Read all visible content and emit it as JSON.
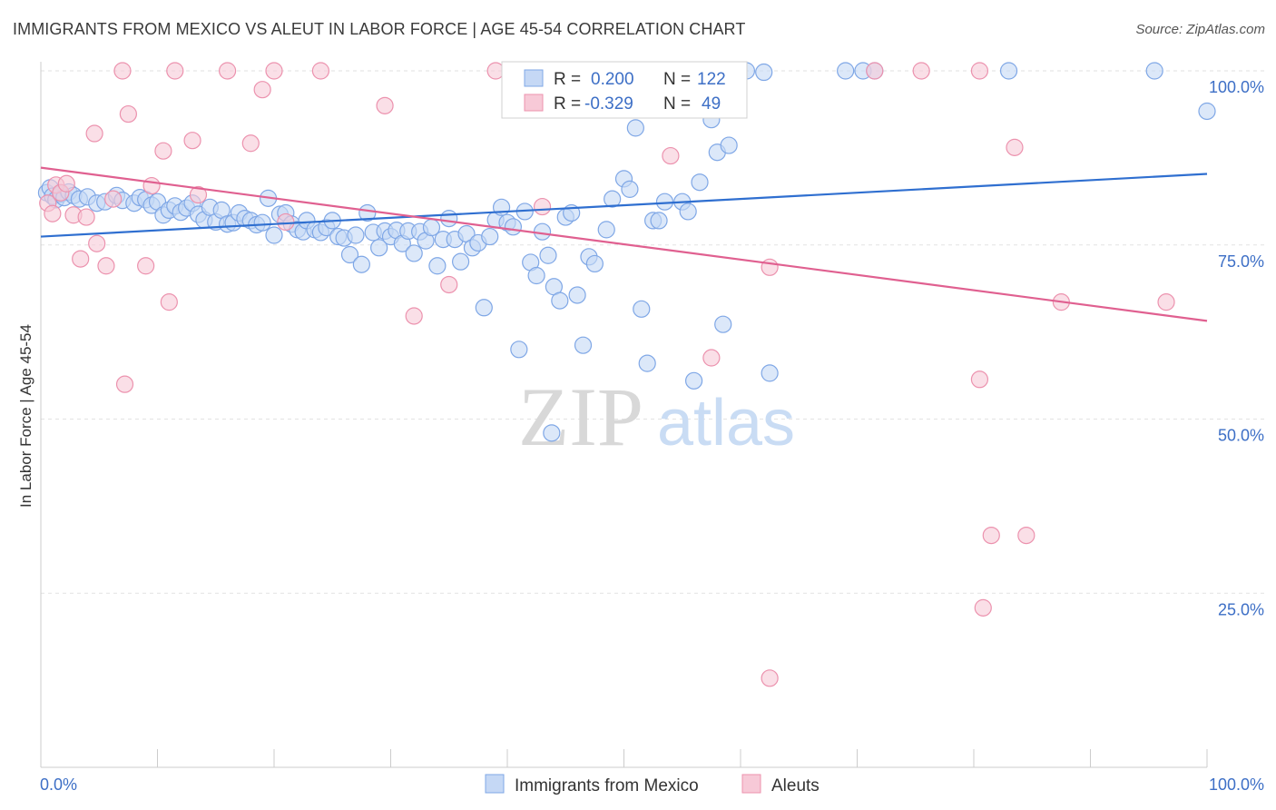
{
  "title": "IMMIGRANTS FROM MEXICO VS ALEUT IN LABOR FORCE | AGE 45-54 CORRELATION CHART",
  "source": "Source: ZipAtlas.com",
  "watermark": {
    "zip": "ZIP",
    "atlas": "atlas"
  },
  "legend": {
    "r_label": "R =",
    "n_label": "N =",
    "rows": [
      {
        "r": "0.200",
        "n": "122"
      },
      {
        "r": "-0.329",
        "n": "49"
      }
    ]
  },
  "chart_data": {
    "type": "scatter",
    "ylabel": "In Labor Force | Age 45-54",
    "xlim": [
      0,
      100
    ],
    "ylim": [
      0,
      100
    ],
    "x_tick_labels": {
      "left": "0.0%",
      "right": "100.0%"
    },
    "y_ticks": [
      {
        "value": 100,
        "label": "100.0%"
      },
      {
        "value": 75,
        "label": "75.0%"
      },
      {
        "value": 50,
        "label": "50.0%"
      },
      {
        "value": 25,
        "label": "25.0%"
      }
    ],
    "grid": "horizontal dashed",
    "legend_position": "top-center",
    "series": [
      {
        "name": "Immigrants from Mexico",
        "color": "#7fa7e6",
        "fill": "#c5d8f5",
        "trend": {
          "x0": 0,
          "y0": 76.2,
          "x1": 100,
          "y1": 85.2,
          "color": "#2f6fd0"
        },
        "points": [
          [
            0.5,
            82.5
          ],
          [
            0.8,
            83.2
          ],
          [
            1.0,
            82.0
          ],
          [
            1.3,
            81.5
          ],
          [
            1.7,
            82.3
          ],
          [
            2.0,
            81.8
          ],
          [
            2.4,
            82.6
          ],
          [
            2.8,
            82.1
          ],
          [
            3.3,
            81.6
          ],
          [
            4.0,
            81.9
          ],
          [
            4.8,
            81.0
          ],
          [
            5.5,
            81.2
          ],
          [
            6.5,
            82.1
          ],
          [
            7.0,
            81.4
          ],
          [
            8.0,
            81.0
          ],
          [
            8.5,
            81.8
          ],
          [
            9.0,
            81.5
          ],
          [
            9.5,
            80.7
          ],
          [
            10.0,
            81.2
          ],
          [
            10.5,
            79.3
          ],
          [
            11.0,
            80.0
          ],
          [
            11.5,
            80.6
          ],
          [
            12.0,
            79.7
          ],
          [
            12.5,
            80.3
          ],
          [
            13.0,
            81.0
          ],
          [
            13.5,
            79.4
          ],
          [
            14.0,
            78.6
          ],
          [
            14.5,
            80.4
          ],
          [
            15.0,
            78.3
          ],
          [
            15.5,
            80.0
          ],
          [
            16.0,
            78.0
          ],
          [
            16.5,
            78.2
          ],
          [
            17.0,
            79.6
          ],
          [
            17.5,
            78.8
          ],
          [
            18.0,
            78.5
          ],
          [
            18.5,
            77.9
          ],
          [
            19.0,
            78.2
          ],
          [
            19.5,
            81.7
          ],
          [
            20.0,
            76.4
          ],
          [
            20.5,
            79.4
          ],
          [
            21.0,
            79.6
          ],
          [
            21.5,
            78.0
          ],
          [
            22.0,
            77.2
          ],
          [
            22.5,
            76.9
          ],
          [
            22.8,
            78.5
          ],
          [
            23.5,
            77.2
          ],
          [
            24.0,
            76.8
          ],
          [
            24.5,
            77.5
          ],
          [
            25.0,
            78.5
          ],
          [
            25.5,
            76.2
          ],
          [
            26.0,
            76.0
          ],
          [
            26.5,
            73.6
          ],
          [
            27.0,
            76.4
          ],
          [
            27.5,
            72.2
          ],
          [
            28.0,
            79.6
          ],
          [
            28.5,
            76.8
          ],
          [
            29.0,
            74.6
          ],
          [
            29.5,
            77.0
          ],
          [
            30.0,
            76.2
          ],
          [
            30.5,
            77.1
          ],
          [
            31.0,
            75.2
          ],
          [
            31.5,
            77.0
          ],
          [
            32.0,
            73.8
          ],
          [
            32.5,
            76.9
          ],
          [
            33.0,
            75.6
          ],
          [
            33.5,
            77.5
          ],
          [
            34.0,
            72.0
          ],
          [
            34.5,
            75.8
          ],
          [
            35.0,
            78.8
          ],
          [
            35.5,
            75.8
          ],
          [
            36.0,
            72.6
          ],
          [
            36.5,
            76.6
          ],
          [
            37.0,
            74.6
          ],
          [
            37.5,
            75.3
          ],
          [
            38.0,
            66.0
          ],
          [
            38.5,
            76.2
          ],
          [
            39.0,
            78.6
          ],
          [
            39.5,
            80.4
          ],
          [
            40.0,
            78.2
          ],
          [
            40.5,
            77.6
          ],
          [
            41.0,
            60.0
          ],
          [
            41.5,
            79.8
          ],
          [
            42.0,
            72.5
          ],
          [
            42.5,
            70.6
          ],
          [
            43.0,
            76.9
          ],
          [
            43.5,
            73.5
          ],
          [
            43.8,
            48.0
          ],
          [
            44.0,
            69.0
          ],
          [
            44.5,
            67.0
          ],
          [
            45.0,
            79.0
          ],
          [
            45.5,
            79.6
          ],
          [
            46.0,
            67.8
          ],
          [
            46.5,
            60.6
          ],
          [
            47.0,
            73.3
          ],
          [
            47.5,
            72.3
          ],
          [
            48.0,
            95.8
          ],
          [
            48.5,
            77.2
          ],
          [
            49.0,
            81.6
          ],
          [
            50.0,
            84.5
          ],
          [
            50.5,
            83.0
          ],
          [
            51.0,
            91.8
          ],
          [
            51.5,
            65.8
          ],
          [
            52.0,
            58.0
          ],
          [
            52.5,
            78.5
          ],
          [
            53.0,
            78.5
          ],
          [
            53.5,
            81.2
          ],
          [
            54.0,
            100.0
          ],
          [
            55.0,
            81.2
          ],
          [
            55.5,
            79.8
          ],
          [
            56.0,
            55.5
          ],
          [
            56.5,
            84.0
          ],
          [
            56.8,
            99.8
          ],
          [
            57.5,
            93.0
          ],
          [
            58.0,
            88.3
          ],
          [
            58.5,
            63.6
          ],
          [
            59.0,
            89.3
          ],
          [
            60.5,
            100.0
          ],
          [
            62.0,
            99.8
          ],
          [
            62.5,
            56.6
          ],
          [
            69.0,
            100.0
          ],
          [
            70.5,
            100.0
          ],
          [
            71.5,
            100.0
          ],
          [
            83.0,
            100.0
          ],
          [
            95.5,
            100.0
          ],
          [
            100.0,
            94.2
          ]
        ]
      },
      {
        "name": "Aleuts",
        "color": "#ec92ae",
        "fill": "#f7c9d7",
        "trend": {
          "x0": 0,
          "y0": 86.1,
          "x1": 100,
          "y1": 64.1,
          "color": "#e06090"
        },
        "points": [
          [
            0.6,
            81.0
          ],
          [
            1.0,
            79.5
          ],
          [
            1.3,
            83.6
          ],
          [
            1.7,
            82.5
          ],
          [
            2.2,
            83.8
          ],
          [
            2.8,
            79.3
          ],
          [
            3.4,
            73.0
          ],
          [
            3.9,
            79.0
          ],
          [
            4.6,
            91.0
          ],
          [
            4.8,
            75.2
          ],
          [
            5.6,
            72.0
          ],
          [
            6.2,
            81.6
          ],
          [
            7.0,
            100.0
          ],
          [
            7.2,
            55.0
          ],
          [
            7.5,
            93.8
          ],
          [
            9.0,
            72.0
          ],
          [
            9.5,
            83.5
          ],
          [
            10.5,
            88.5
          ],
          [
            11.0,
            66.8
          ],
          [
            11.5,
            100.0
          ],
          [
            13.0,
            90.0
          ],
          [
            13.5,
            82.2
          ],
          [
            16.0,
            100.0
          ],
          [
            18.0,
            89.6
          ],
          [
            19.0,
            97.3
          ],
          [
            20.0,
            100.0
          ],
          [
            21.0,
            78.3
          ],
          [
            24.0,
            100.0
          ],
          [
            29.5,
            95.0
          ],
          [
            32.0,
            64.8
          ],
          [
            35.0,
            69.3
          ],
          [
            39.0,
            100.0
          ],
          [
            43.0,
            80.5
          ],
          [
            52.5,
            100.0
          ],
          [
            54.0,
            87.8
          ],
          [
            57.5,
            58.8
          ],
          [
            58.0,
            100.0
          ],
          [
            62.5,
            71.8
          ],
          [
            62.5,
            12.8
          ],
          [
            71.5,
            100.0
          ],
          [
            75.5,
            100.0
          ],
          [
            80.5,
            100.0
          ],
          [
            80.8,
            22.9
          ],
          [
            80.5,
            55.7
          ],
          [
            81.5,
            33.3
          ],
          [
            83.5,
            89.0
          ],
          [
            84.5,
            33.3
          ],
          [
            87.5,
            66.8
          ],
          [
            96.5,
            66.8
          ]
        ]
      }
    ]
  }
}
